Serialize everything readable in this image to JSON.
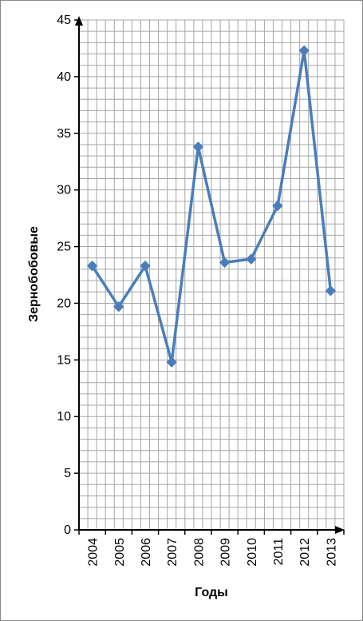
{
  "chart_data": {
    "type": "line",
    "title": "",
    "xlabel": "Годы",
    "ylabel": "Зернобобовые",
    "categories": [
      "2004",
      "2005",
      "2006",
      "2007",
      "2008",
      "2009",
      "2010",
      "2011",
      "2012",
      "2013"
    ],
    "series": [
      {
        "values": [
          23.3,
          19.7,
          23.3,
          14.8,
          33.8,
          23.6,
          23.9,
          28.6,
          42.3,
          21.1
        ],
        "color": "#4a7ebb",
        "marker": "diamond"
      }
    ],
    "ylim": [
      0,
      45
    ],
    "yticks": [
      0,
      5,
      10,
      15,
      20,
      25,
      30,
      35,
      40,
      45
    ],
    "ytick_labels": [
      "0",
      "5",
      "10",
      "15",
      "20",
      "25",
      "30",
      "35",
      "40",
      "45"
    ],
    "minor_y_step": 1,
    "minor_x_per_category": 3,
    "grid": true,
    "grid_color": "#a6a6a6",
    "axis_color": "#000000",
    "legend": "none"
  }
}
